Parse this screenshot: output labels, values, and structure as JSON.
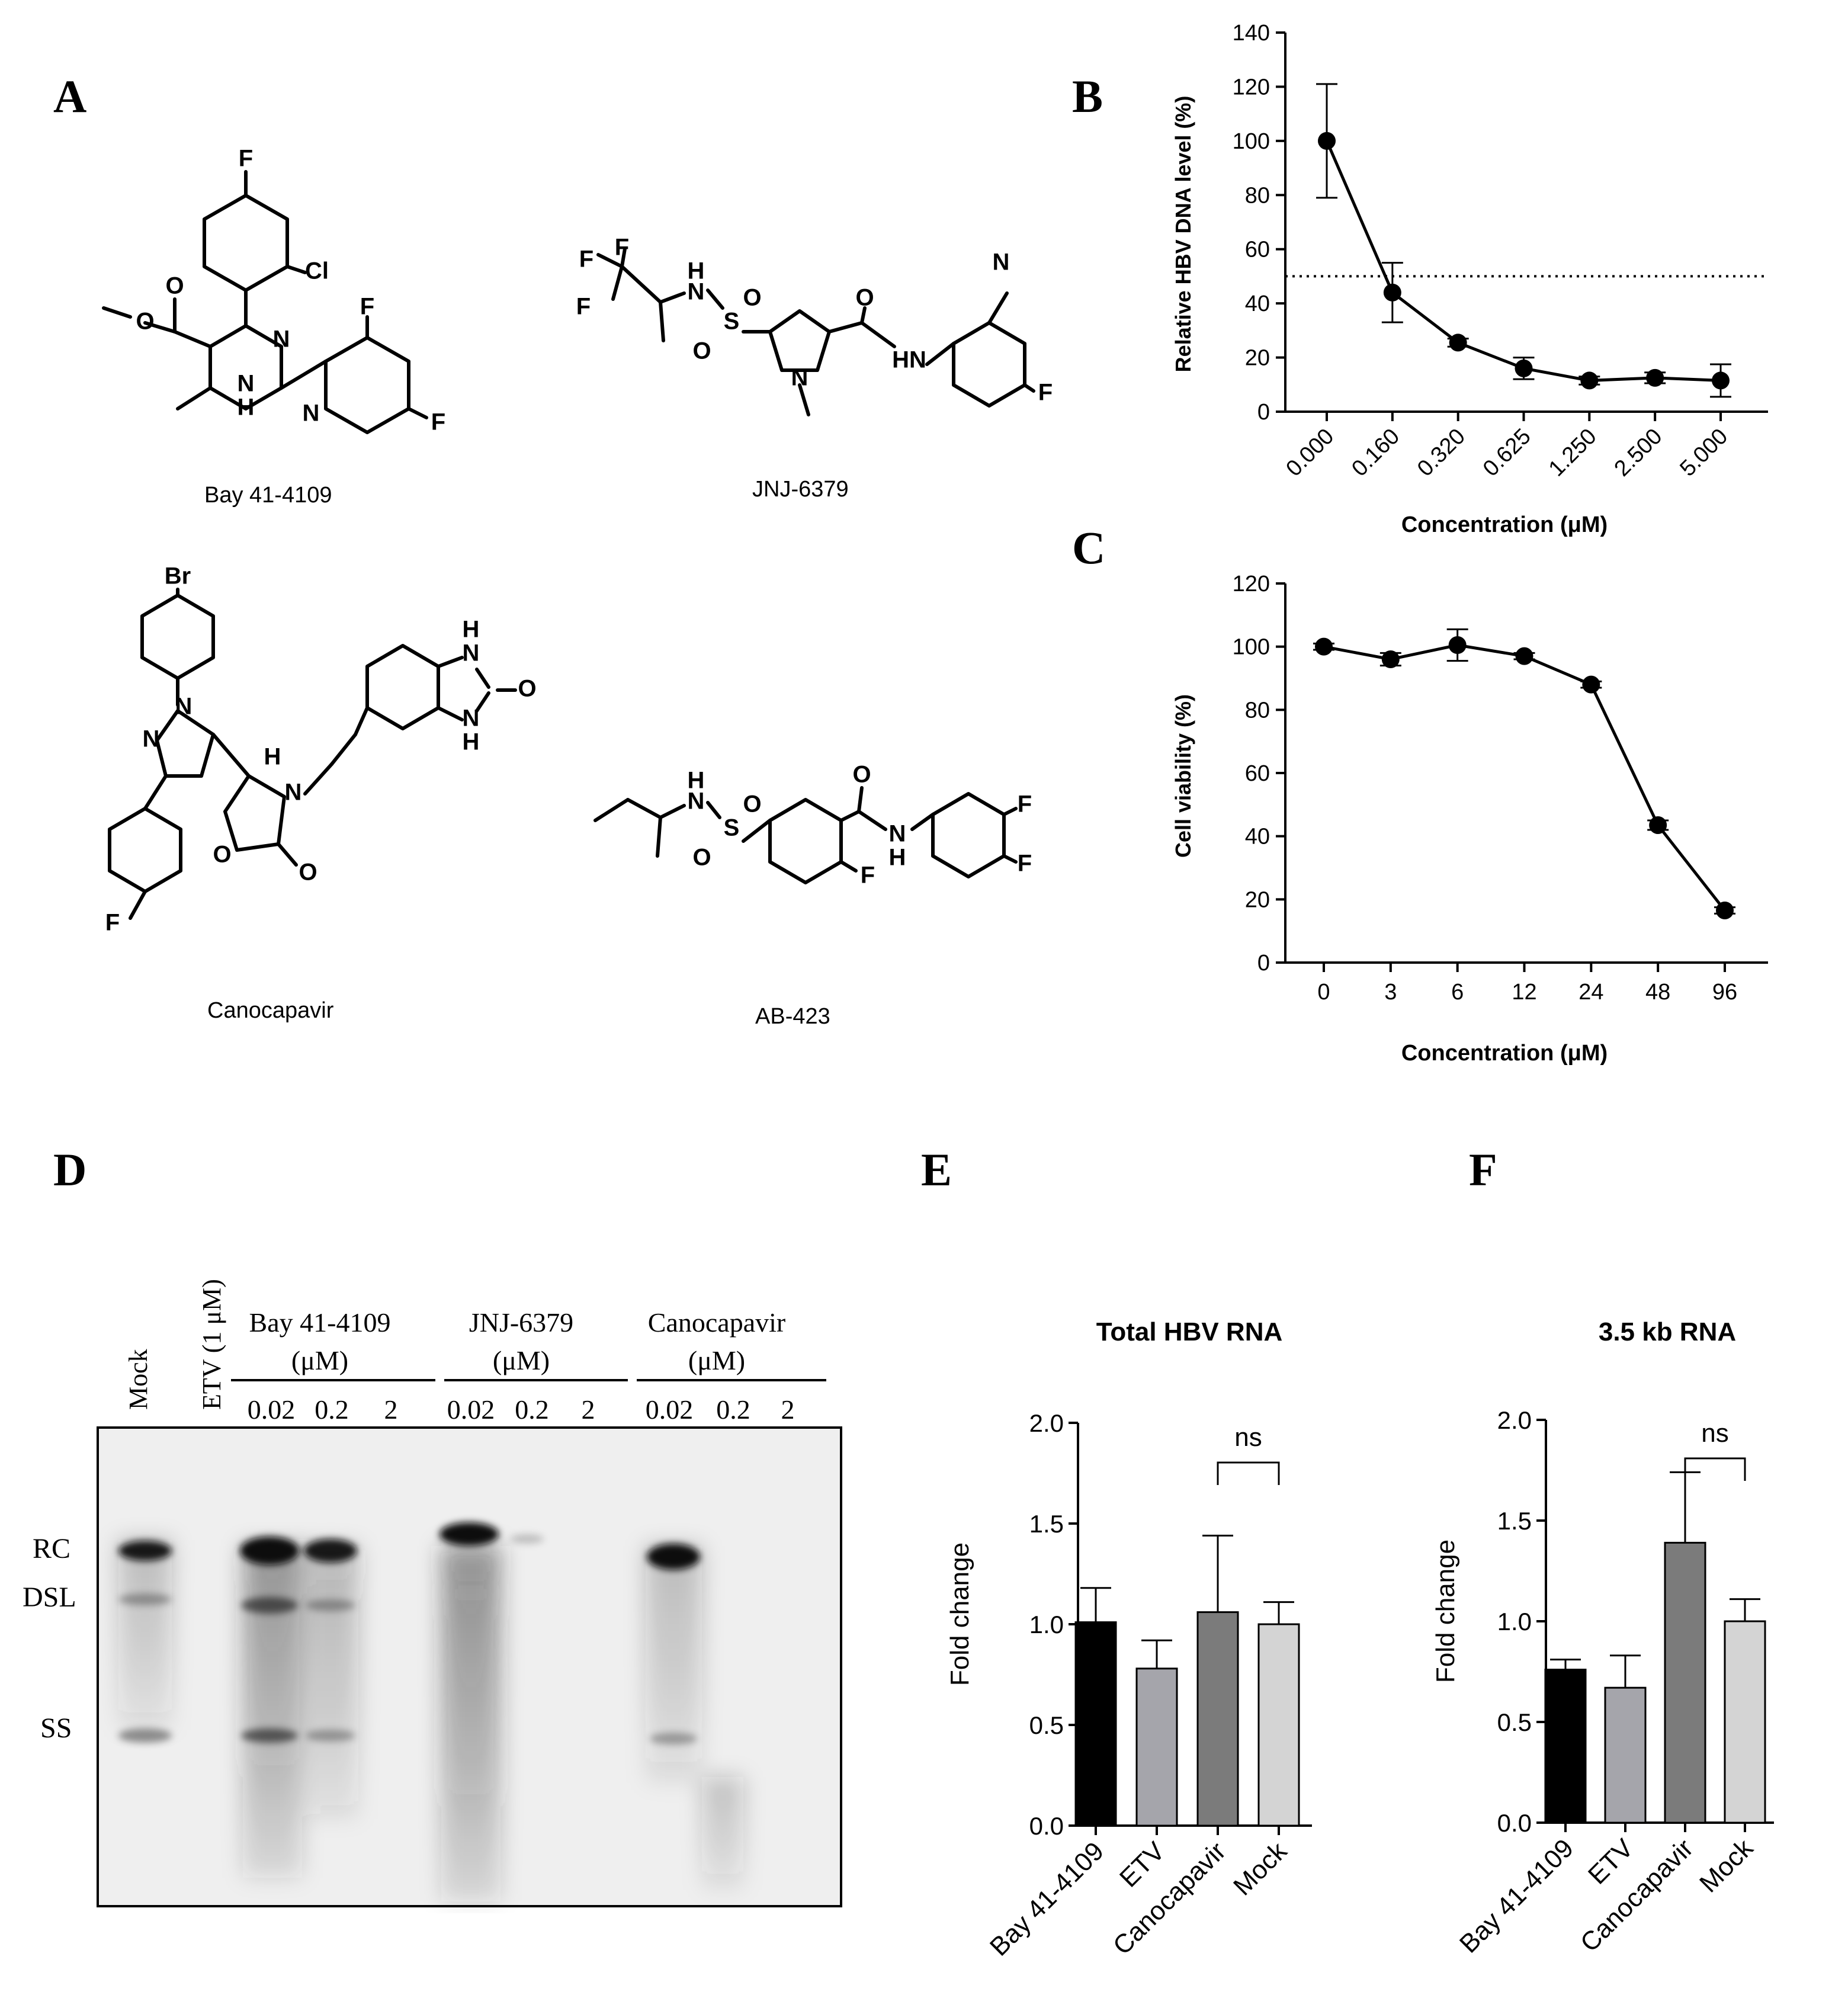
{
  "panels": {
    "A": "A",
    "B": "B",
    "C": "C",
    "D": "D",
    "E": "E",
    "F": "F"
  },
  "compounds": [
    {
      "name": "Bay 41-4109"
    },
    {
      "name": "JNJ-6379"
    },
    {
      "name": "Canocapavir"
    },
    {
      "name": "AB-423"
    }
  ],
  "atoms": {
    "bay": [
      "F",
      "Cl",
      "O",
      "O",
      "N",
      "N",
      "H",
      "F",
      "N",
      "F"
    ],
    "jnj": [
      "F",
      "F",
      "F",
      "N",
      "H",
      "S",
      "O",
      "O",
      "N",
      "O",
      "N",
      "HN",
      "F"
    ],
    "cano": [
      "Br",
      "N",
      "N",
      "H",
      "O",
      "N",
      "O",
      "F",
      "H",
      "N",
      "N",
      "H",
      "O"
    ],
    "ab": [
      "N",
      "H",
      "S",
      "O",
      "O",
      "O",
      "N",
      "H",
      "F",
      "F",
      "F"
    ]
  },
  "chart_data": [
    {
      "id": "B",
      "type": "line",
      "title": "",
      "xlabel": "Concentration (μM)",
      "ylabel": "Relative HBV DNA level  (%)",
      "categories": [
        "0.000",
        "0.160",
        "0.320",
        "0.625",
        "1.250",
        "2.500",
        "5.000"
      ],
      "values": [
        100,
        44,
        25.5,
        16,
        11.5,
        12.5,
        11.5
      ],
      "errors": [
        21,
        11,
        1.5,
        4,
        1.5,
        2,
        6
      ],
      "reference_line": 50,
      "ylim": [
        0,
        140
      ],
      "yticks": [
        0,
        20,
        40,
        60,
        80,
        100,
        120,
        140
      ]
    },
    {
      "id": "C",
      "type": "line",
      "title": "",
      "xlabel": "Concentration (μM)",
      "ylabel": "Cell viability (%)",
      "categories": [
        "0",
        "3",
        "6",
        "12",
        "24",
        "48",
        "96"
      ],
      "values": [
        100,
        96,
        100.5,
        97,
        88,
        43.5,
        16.5
      ],
      "errors": [
        1,
        2,
        5,
        1,
        1,
        1.5,
        1
      ],
      "ylim": [
        0,
        120
      ],
      "yticks": [
        0,
        20,
        40,
        60,
        80,
        100,
        120
      ]
    },
    {
      "id": "E",
      "type": "bar",
      "title": "Total HBV RNA",
      "xlabel": "",
      "ylabel": "Fold change",
      "categories": [
        "Bay 41-4109",
        "ETV",
        "Canocapavir",
        "Mock"
      ],
      "values": [
        1.01,
        0.78,
        1.06,
        1.0
      ],
      "errors": [
        0.17,
        0.14,
        0.38,
        0.11
      ],
      "colors": [
        "#000000",
        "#a5a5ab",
        "#7b7b7b",
        "#d4d4d4"
      ],
      "significance": {
        "from": 2,
        "to": 3,
        "label": "ns"
      },
      "ylim": [
        0,
        2.0
      ],
      "yticks": [
        "0.0",
        "0.5",
        "1.0",
        "1.5",
        "2.0"
      ]
    },
    {
      "id": "F",
      "type": "bar",
      "title": "3.5 kb RNA",
      "xlabel": "",
      "ylabel": "Fold change",
      "categories": [
        "Bay 41-4109",
        "ETV",
        "Canocapavir",
        "Mock"
      ],
      "values": [
        0.76,
        0.67,
        1.39,
        1.0
      ],
      "errors": [
        0.05,
        0.16,
        0.35,
        0.11
      ],
      "colors": [
        "#000000",
        "#a5a5ab",
        "#7b7b7b",
        "#d4d4d4"
      ],
      "significance": {
        "from": 2,
        "to": 3,
        "label": "ns"
      },
      "ylim": [
        0,
        2.0
      ],
      "yticks": [
        "0.0",
        "0.5",
        "1.0",
        "1.5",
        "2.0"
      ]
    }
  ],
  "gel": {
    "lane_labels": [
      "Mock",
      "ETV (1 μM)"
    ],
    "groups": [
      {
        "name": "Bay 41-4109",
        "unit": "(μM)"
      },
      {
        "name": "JNJ-6379",
        "unit": "(μM)"
      },
      {
        "name": "Canocapavir",
        "unit": "(μM)"
      }
    ],
    "doses": [
      "0.02",
      "0.2",
      "2",
      "0.02",
      "0.2",
      "2",
      "0.02",
      "0.2",
      "2"
    ],
    "band_labels": [
      "RC",
      "DSL",
      "SS"
    ]
  }
}
